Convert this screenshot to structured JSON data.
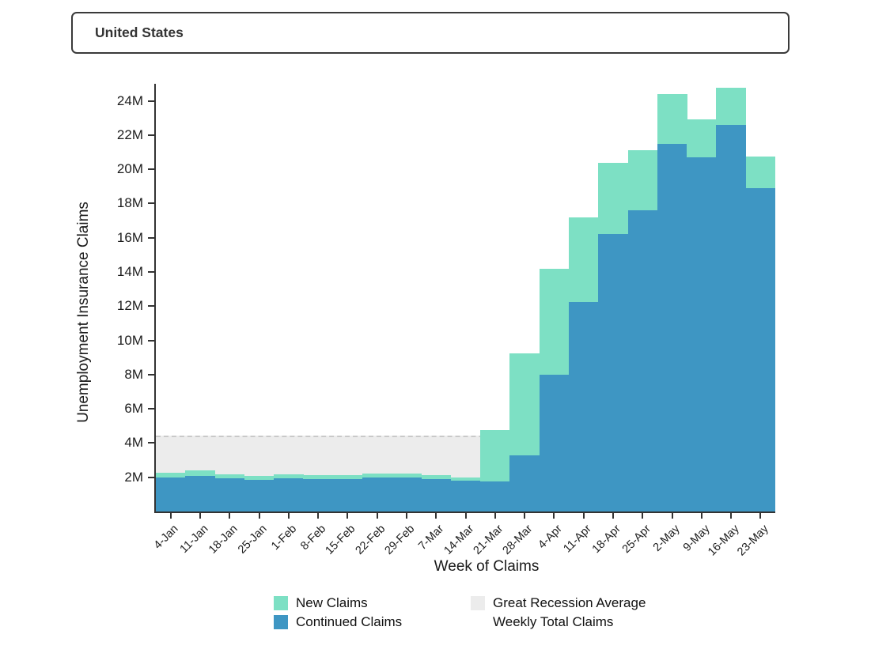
{
  "selector": {
    "value": "United States"
  },
  "chart_data": {
    "type": "bar",
    "stacked": true,
    "title": "",
    "xlabel": "Week of Claims",
    "ylabel": "Unemployment Insurance Claims",
    "unit": "millions of claims",
    "grid": false,
    "ylim": [
      0,
      25
    ],
    "categories": [
      "4-Jan",
      "11-Jan",
      "18-Jan",
      "25-Jan",
      "1-Feb",
      "8-Feb",
      "15-Feb",
      "22-Feb",
      "29-Feb",
      "7-Mar",
      "14-Mar",
      "21-Mar",
      "28-Mar",
      "4-Apr",
      "11-Apr",
      "18-Apr",
      "25-Apr",
      "2-May",
      "9-May",
      "16-May",
      "23-May"
    ],
    "series": [
      {
        "name": "Continued Claims",
        "color": "#3e96c3",
        "values": [
          2.0,
          2.1,
          1.95,
          1.85,
          1.95,
          1.9,
          1.9,
          2.0,
          2.0,
          1.9,
          1.8,
          1.75,
          3.3,
          8.0,
          12.25,
          16.2,
          17.6,
          21.5,
          20.7,
          22.6,
          18.9
        ]
      },
      {
        "name": "New Claims",
        "color": "#7de0c4",
        "values": [
          0.26,
          0.32,
          0.22,
          0.21,
          0.22,
          0.21,
          0.21,
          0.2,
          0.22,
          0.21,
          0.2,
          3.0,
          5.95,
          6.2,
          4.95,
          4.2,
          3.5,
          2.9,
          2.2,
          2.15,
          1.85
        ]
      }
    ],
    "reference_band": {
      "name": "Great Recession Average Weekly Total Claims",
      "value": 4.45,
      "from": 0,
      "color": "#ececec",
      "line_style": "dashed",
      "line_color": "#c9c9c9"
    },
    "yticks": [
      {
        "value": 2,
        "label": "2M"
      },
      {
        "value": 4,
        "label": "4M"
      },
      {
        "value": 6,
        "label": "6M"
      },
      {
        "value": 8,
        "label": "8M"
      },
      {
        "value": 10,
        "label": "10M"
      },
      {
        "value": 12,
        "label": "12M"
      },
      {
        "value": 14,
        "label": "14M"
      },
      {
        "value": 16,
        "label": "16M"
      },
      {
        "value": 18,
        "label": "18M"
      },
      {
        "value": 20,
        "label": "20M"
      },
      {
        "value": 22,
        "label": "22M"
      },
      {
        "value": 24,
        "label": "24M"
      }
    ],
    "legend": {
      "position": "bottom",
      "items": [
        {
          "label": "New Claims",
          "color": "#7de0c4"
        },
        {
          "label": "Continued Claims",
          "color": "#3e96c3"
        },
        {
          "label_line1": "Great Recession Average",
          "label_line2": "Weekly Total Claims",
          "color": "#ececec"
        }
      ]
    }
  }
}
